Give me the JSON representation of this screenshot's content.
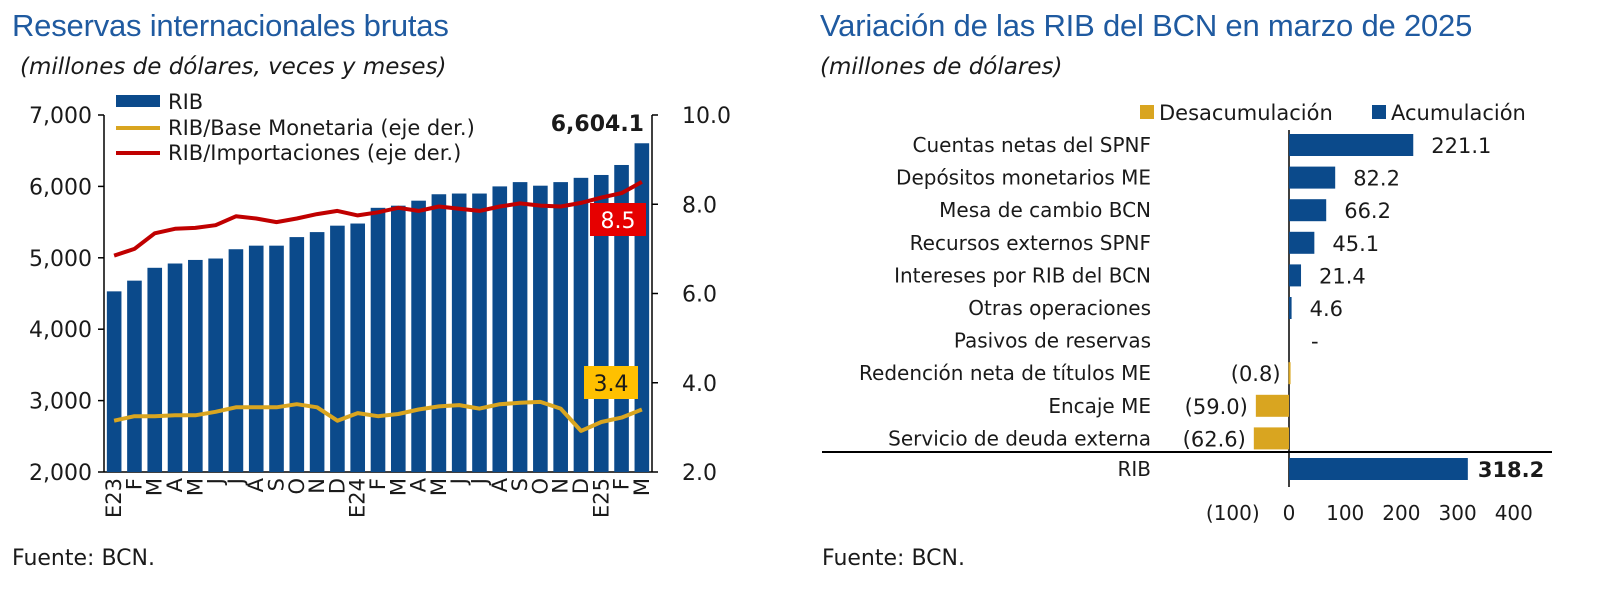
{
  "left_panel": {
    "title": "Reservas internacionales brutas",
    "subtitle": "(millones de dólares, veces y meses)",
    "source": "Fuente: BCN."
  },
  "right_panel": {
    "title": "Variación de las RIB del BCN en marzo de 2025",
    "subtitle": "(millones de dólares)",
    "source": "Fuente: BCN."
  },
  "colors": {
    "title": "#1f5aa0",
    "bar_blue": "#0b4a8b",
    "line_red": "#c00000",
    "line_gold": "#d9a520",
    "label_red_bg": "#e60000",
    "label_gold_bg": "#ffc000"
  },
  "chart_data": [
    {
      "type": "bar+line",
      "title": "Reservas internacionales brutas",
      "categories": [
        "E23",
        "F",
        "M",
        "A",
        "M",
        "J",
        "J",
        "A",
        "S",
        "O",
        "N",
        "D",
        "E24",
        "F",
        "M",
        "A",
        "M",
        "J",
        "J",
        "A",
        "S",
        "O",
        "N",
        "D",
        "E25",
        "F",
        "M"
      ],
      "series": [
        {
          "name": "RIB",
          "axis": "left",
          "kind": "bar",
          "values": [
            4530,
            4680,
            4860,
            4920,
            4970,
            4990,
            5120,
            5170,
            5170,
            5290,
            5360,
            5450,
            5480,
            5700,
            5730,
            5800,
            5890,
            5900,
            5900,
            6000,
            6060,
            6010,
            6060,
            6120,
            6160,
            6300,
            6604.1
          ]
        },
        {
          "name": "RIB/Base Monetaria (eje der.)",
          "axis": "right",
          "kind": "line",
          "values": [
            3.15,
            3.25,
            3.25,
            3.27,
            3.27,
            3.35,
            3.45,
            3.45,
            3.45,
            3.52,
            3.45,
            3.15,
            3.32,
            3.25,
            3.3,
            3.4,
            3.47,
            3.5,
            3.42,
            3.52,
            3.55,
            3.57,
            3.42,
            2.92,
            3.12,
            3.22,
            3.4
          ]
        },
        {
          "name": "RIB/Importaciones (eje der.)",
          "axis": "right",
          "kind": "line",
          "values": [
            6.85,
            7.0,
            7.35,
            7.45,
            7.47,
            7.53,
            7.73,
            7.68,
            7.6,
            7.68,
            7.78,
            7.85,
            7.75,
            7.82,
            7.92,
            7.85,
            7.95,
            7.9,
            7.85,
            7.95,
            8.02,
            7.97,
            7.95,
            8.03,
            8.15,
            8.25,
            8.5
          ]
        }
      ],
      "ylim_left": [
        2000,
        7000
      ],
      "yticks_left": [
        "2,000",
        "3,000",
        "4,000",
        "5,000",
        "6,000",
        "7,000"
      ],
      "ylim_right": [
        2.0,
        10.0
      ],
      "yticks_right": [
        "2.0",
        "4.0",
        "6.0",
        "8.0",
        "10.0"
      ],
      "annotations": {
        "rib_last": "6,604.1",
        "imports_last": "8.5",
        "base_last": "3.4"
      },
      "legend": [
        "RIB",
        "RIB/Base Monetaria (eje der.)",
        "RIB/Importaciones (eje der.)"
      ]
    },
    {
      "type": "bar",
      "orientation": "horizontal",
      "title": "Variación de las RIB del BCN en marzo de 2025",
      "legend": [
        "Desacumulación",
        "Acumulación"
      ],
      "categories": [
        "Cuentas netas del SPNF",
        "Depósitos monetarios ME",
        "Mesa de cambio BCN",
        "Recursos externos SPNF",
        "Intereses por RIB del BCN",
        "Otras operaciones",
        "Pasivos de reservas",
        "Redención neta de títulos ME",
        "Encaje ME",
        "Servicio de deuda externa",
        "RIB"
      ],
      "values": [
        221.1,
        82.2,
        66.2,
        45.1,
        21.4,
        4.6,
        0,
        -0.8,
        -59.0,
        -62.6,
        318.2
      ],
      "labels": [
        "221.1",
        "82.2",
        "66.2",
        "45.1",
        "21.4",
        "4.6",
        "-",
        "(0.8)",
        "(59.0)",
        "(62.6)",
        "318.2"
      ],
      "xlim": [
        -100,
        400
      ],
      "xticks": [
        "(100)",
        "0",
        "100",
        "200",
        "300",
        "400"
      ]
    }
  ]
}
